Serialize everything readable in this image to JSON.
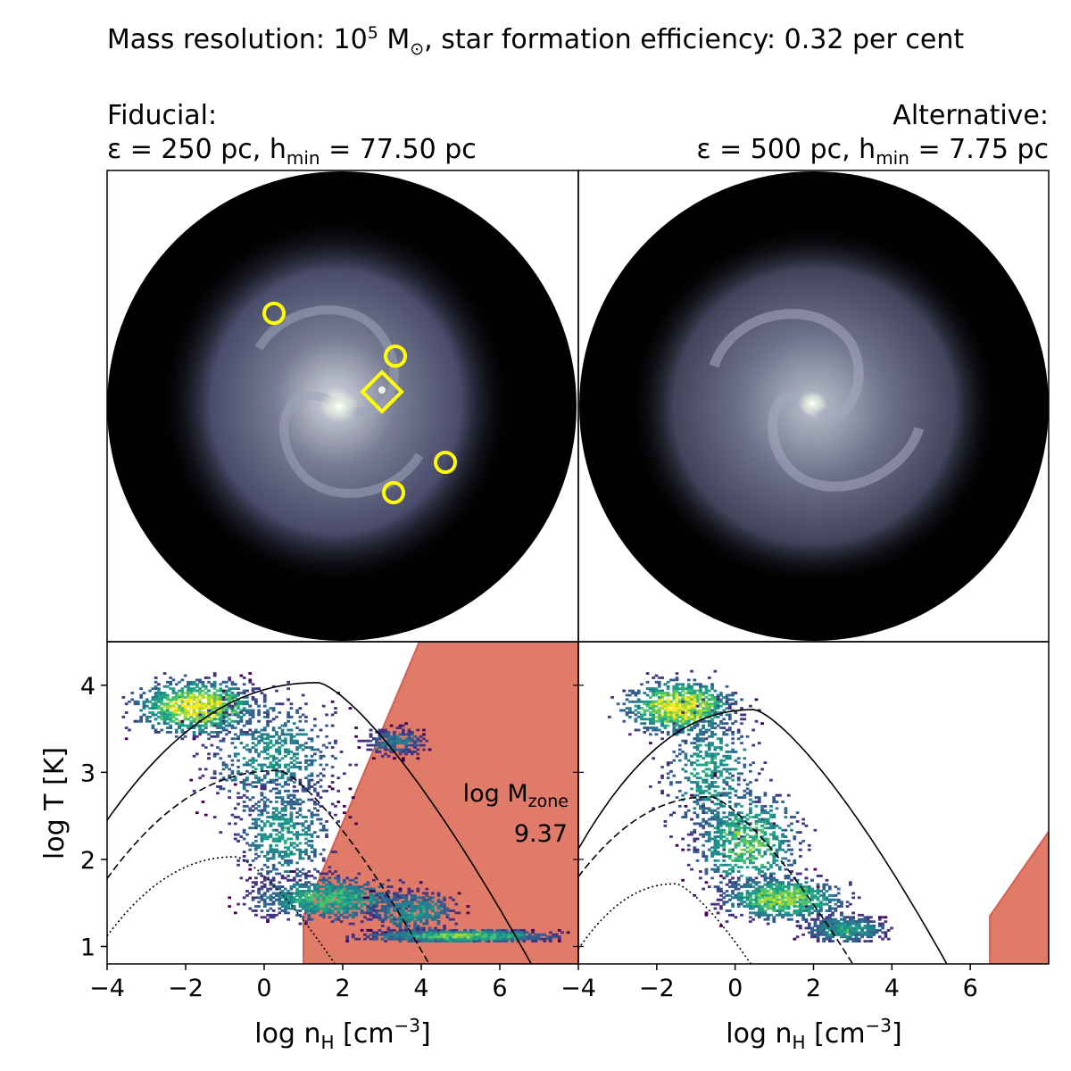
{
  "figure": {
    "title_prefix": "Mass resolution: 10",
    "title_exp": "5",
    "title_unit": " M",
    "title_sun": "⊙",
    "title_suffix": ", star formation efficiency: 0.32 per cent"
  },
  "panels": [
    {
      "id": "fiducial",
      "heading": "Fiducial:",
      "eps_text": "ε = 250 pc, h",
      "hmin_sub": "min",
      "hmin_text": " = 77.50 pc",
      "marker_circles": 4,
      "marker_diamonds": 1,
      "marker_color": "#ffff00"
    },
    {
      "id": "alternative",
      "heading": "Alternative:",
      "eps_text": "ε = 500 pc, h",
      "hmin_sub": "min",
      "hmin_text": " = 7.75 pc",
      "marker_circles": 0,
      "marker_diamonds": 0
    }
  ],
  "annotation": {
    "label": "log M",
    "label_sub": "zone",
    "value": "9.37"
  },
  "colors": {
    "forbidden_region": "#e07b6a",
    "forbidden_edge": "#d65f50",
    "image_background": "#000000",
    "gas": "#b9bdd3"
  },
  "chart_data": [
    {
      "type": "heatmap",
      "name": "fiducial phase diagram",
      "xlabel": "log n",
      "xlabel_sub": "H",
      "xlabel_unit": " [cm",
      "xlabel_exp": "−3",
      "xlabel_close": "]",
      "ylabel": "log T [K]",
      "xlim": [
        -4,
        8
      ],
      "ylim": [
        0.8,
        4.5
      ],
      "xticks": [
        -4,
        -2,
        0,
        2,
        4,
        6
      ],
      "xtick_labels": [
        "−4",
        "−2",
        "0",
        "2",
        "4",
        "6"
      ],
      "yticks": [
        1,
        2,
        3,
        4
      ],
      "ytick_labels": [
        "1",
        "2",
        "3",
        "4"
      ],
      "forbidden_region": [
        [
          1.0,
          0.8
        ],
        [
          1.0,
          1.35
        ],
        [
          4.0,
          4.55
        ],
        [
          8.0,
          4.55
        ],
        [
          8.0,
          0.8
        ]
      ],
      "curves": [
        {
          "style": "solid",
          "peak_x": 1.4,
          "peak_y": 4.03,
          "left": [
            -4,
            2.45
          ],
          "right_end": [
            6.8,
            0.8
          ]
        },
        {
          "style": "dashed",
          "peak_x": 0.4,
          "peak_y": 3.02,
          "left": [
            -4,
            1.78
          ],
          "right_end": [
            4.2,
            0.8
          ]
        },
        {
          "style": "dotted",
          "peak_x": -0.7,
          "peak_y": 2.03,
          "left": [
            -4,
            1.12
          ],
          "right_end": [
            1.8,
            0.8
          ]
        }
      ]
    },
    {
      "type": "heatmap",
      "name": "alternative phase diagram",
      "xlabel": "log n",
      "xlabel_sub": "H",
      "xlabel_unit": " [cm",
      "xlabel_exp": "−3",
      "xlabel_close": "]",
      "xlim": [
        -4,
        8
      ],
      "ylim": [
        0.8,
        4.5
      ],
      "xticks": [
        -4,
        -2,
        0,
        2,
        4,
        6
      ],
      "xtick_labels": [
        "−4",
        "−2",
        "0",
        "2",
        "4",
        "6"
      ],
      "yticks": [
        1,
        2,
        3,
        4
      ],
      "forbidden_region": [
        [
          6.5,
          0.8
        ],
        [
          6.5,
          1.35
        ],
        [
          8.0,
          2.32
        ],
        [
          8.0,
          0.8
        ]
      ],
      "curves": [
        {
          "style": "solid",
          "peak_x": 0.5,
          "peak_y": 3.72,
          "left": [
            -4,
            2.12
          ],
          "right_end": [
            5.4,
            0.8
          ]
        },
        {
          "style": "dashed",
          "peak_x": -0.6,
          "peak_y": 2.72,
          "left": [
            -4,
            1.8
          ],
          "right_end": [
            3.0,
            0.8
          ]
        },
        {
          "style": "dotted",
          "peak_x": -1.5,
          "peak_y": 1.72,
          "left": [
            -4,
            0.97
          ],
          "right_end": [
            0.4,
            0.8
          ]
        }
      ]
    }
  ]
}
